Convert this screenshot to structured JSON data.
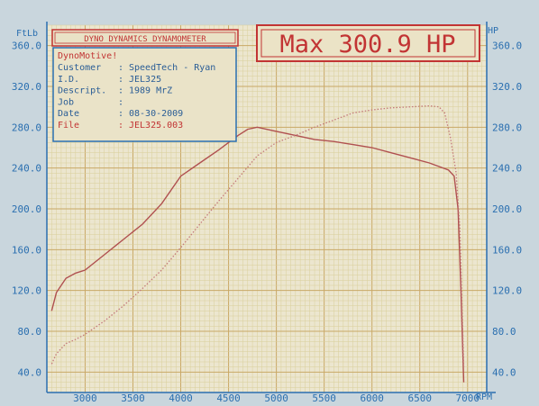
{
  "header": {
    "brand": "DYNO DYNAMICS DYNAMOMETER",
    "max_label": "Max 300.9 HP"
  },
  "info": {
    "title": "DynoMotive!",
    "rows": [
      {
        "label": "Customer",
        "value": "SpeedTech - Ryan"
      },
      {
        "label": "I.D.",
        "value": "JEL325"
      },
      {
        "label": "Descript.",
        "value": "1989 MrZ"
      },
      {
        "label": "Job",
        "value": ""
      },
      {
        "label": "Date",
        "value": "08-30-2009"
      },
      {
        "label": "File",
        "value": "JEL325.003"
      }
    ]
  },
  "colors": {
    "background": "#c9d6dd",
    "grid_minor": "#d9cf9a",
    "grid_major": "#c9a866",
    "axis_text": "#2a6fb0",
    "red": "#c23434",
    "torque_line": "#b05050",
    "hp_line": "#c47a7a"
  },
  "chart_data": {
    "type": "line",
    "x_unit": "RPM",
    "left_unit": "FtLb",
    "right_unit": "HP",
    "x_ticks": [
      "3000",
      "3500",
      "4000",
      "4500",
      "5000",
      "5500",
      "6000",
      "6500",
      "7000"
    ],
    "y_ticks_left": [
      "40.0",
      "80.0",
      "120.0",
      "160.0",
      "200.0",
      "240.0",
      "280.0",
      "320.0",
      "360.0"
    ],
    "y_ticks_right": [
      "40.0",
      "80.0",
      "120.0",
      "160.0",
      "200.0",
      "240.0",
      "280.0",
      "320.0",
      "360.0"
    ],
    "xlim": [
      2600,
      7200
    ],
    "ylim": [
      20,
      380
    ],
    "grid": true,
    "series": [
      {
        "style": "solid",
        "x": [
          2650,
          2700,
          2800,
          2900,
          3000,
          3200,
          3400,
          3600,
          3800,
          4000,
          4200,
          4400,
          4600,
          4700,
          4800,
          5000,
          5200,
          5400,
          5600,
          5800,
          6000,
          6200,
          6400,
          6600,
          6800,
          6860,
          6900,
          6930,
          6960
        ],
        "y": [
          100,
          118,
          132,
          137,
          140,
          155,
          170,
          185,
          205,
          232,
          245,
          258,
          272,
          278,
          280,
          276,
          272,
          268,
          266,
          263,
          260,
          255,
          250,
          245,
          238,
          232,
          200,
          120,
          30
        ]
      },
      {
        "style": "dotted",
        "x": [
          2650,
          2700,
          2800,
          2900,
          3000,
          3200,
          3400,
          3600,
          3800,
          4000,
          4200,
          4400,
          4600,
          4800,
          5000,
          5200,
          5400,
          5600,
          5800,
          6000,
          6200,
          6400,
          6600,
          6700,
          6760,
          6820,
          6880,
          6920,
          6960
        ],
        "y": [
          48,
          58,
          68,
          72,
          77,
          90,
          105,
          122,
          140,
          162,
          185,
          208,
          230,
          252,
          265,
          272,
          280,
          287,
          294,
          297,
          299,
          300,
          300.9,
          300,
          294,
          270,
          235,
          180,
          45
        ]
      }
    ]
  }
}
